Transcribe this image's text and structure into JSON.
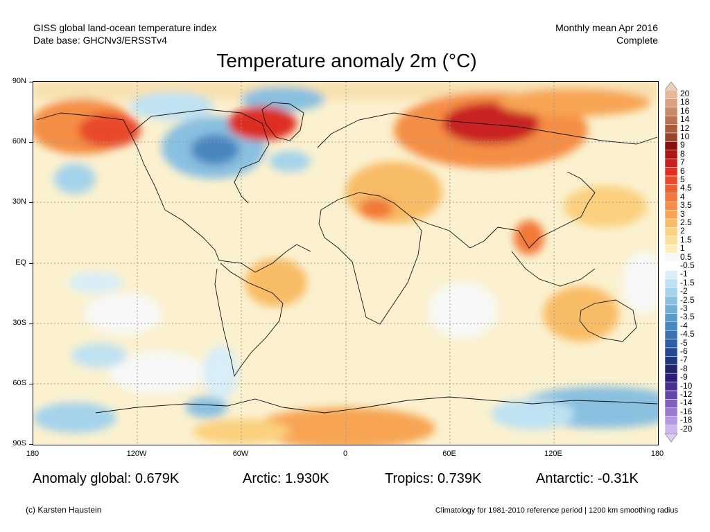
{
  "header": {
    "dataset": "GISS global land-ocean temperature index",
    "database": "Date base: GHCNv3/ERSSTv4",
    "period": "Monthly mean Apr 2016",
    "status": "Complete"
  },
  "title": "Temperature anomaly 2m (°C)",
  "axes": {
    "lat_labels": [
      "90N",
      "60N",
      "30N",
      "EQ",
      "30S",
      "60S",
      "90S"
    ],
    "lon_labels": [
      "180",
      "120W",
      "60W",
      "0",
      "60E",
      "120E",
      "180"
    ]
  },
  "colorbar": {
    "labels": [
      "20",
      "18",
      "16",
      "14",
      "12",
      "10",
      "9",
      "8",
      "7",
      "6",
      "5",
      "4.5",
      "4",
      "3.5",
      "3",
      "2.5",
      "2",
      "1.5",
      "1",
      "0.5",
      "-0.5",
      "-1",
      "-1.5",
      "-2",
      "-2.5",
      "-3",
      "-3.5",
      "-4",
      "-4.5",
      "-5",
      "-6",
      "-7",
      "-8",
      "-9",
      "-10",
      "-12",
      "-14",
      "-16",
      "-18",
      "-20"
    ],
    "colors": [
      "#e6b89a",
      "#d9a07e",
      "#c98966",
      "#b9714f",
      "#a85c3c",
      "#96462b",
      "#8a1010",
      "#b01515",
      "#c82020",
      "#dd2f22",
      "#e84a2a",
      "#ee5f30",
      "#f27838",
      "#f58e44",
      "#f7a553",
      "#f9bc66",
      "#fbd07e",
      "#fce099",
      "#feeeb8",
      "#f8f8f8",
      "#ffffff",
      "#d8eef8",
      "#bfe2f2",
      "#a4d3eb",
      "#89c0e0",
      "#70aed6",
      "#5a9acb",
      "#4886c0",
      "#3a72b3",
      "#2d5ea5",
      "#234993",
      "#20367d",
      "#22256a",
      "#2e1d7a",
      "#4a2f93",
      "#6446aa",
      "#7e5fc0",
      "#9a7ad3",
      "#b597e2",
      "#cdb5ee"
    ],
    "top_cap": "#f2d0bd",
    "bottom_cap": "#ddccf5"
  },
  "stats": {
    "global": "Anomaly global: 0.679K",
    "arctic": "Arctic: 1.930K",
    "tropics": "Tropics: 0.739K",
    "antarctic": "Antarctic: -0.31K"
  },
  "footer": {
    "credit": "(c) Karsten Haustein",
    "climatology": "Climatology for 1981-2010 reference period | 1200 km smoothing radius"
  }
}
